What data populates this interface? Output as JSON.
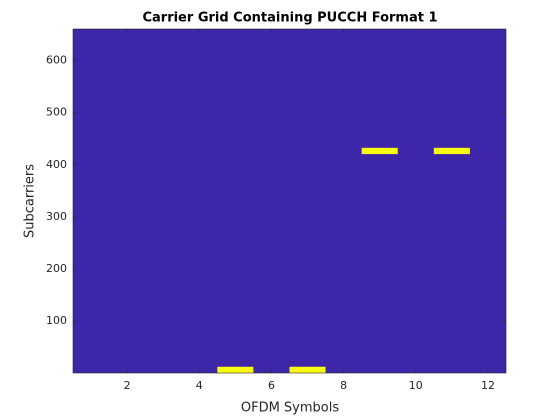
{
  "chart_data": {
    "type": "grid",
    "title": "Carrier Grid Containing PUCCH Format 1",
    "x_label": "OFDM Symbols",
    "y_label": "Subcarriers",
    "background_color": "#3e26a8",
    "cell_color": "#f9fb0e",
    "cells": [
      {
        "symbol": 5,
        "subcarriers": [
          1,
          12
        ]
      },
      {
        "symbol": 7,
        "subcarriers": [
          1,
          12
        ]
      },
      {
        "symbol": 9,
        "subcarriers": [
          421,
          432
        ]
      },
      {
        "symbol": 11,
        "subcarriers": [
          421,
          432
        ]
      }
    ],
    "xlim": [
      0.5,
      12.5
    ],
    "xticks": [
      2,
      4,
      6,
      8,
      10,
      12
    ],
    "ylim": [
      0.5,
      660.5
    ],
    "yticks": [
      100,
      200,
      300,
      400,
      500,
      600
    ]
  }
}
